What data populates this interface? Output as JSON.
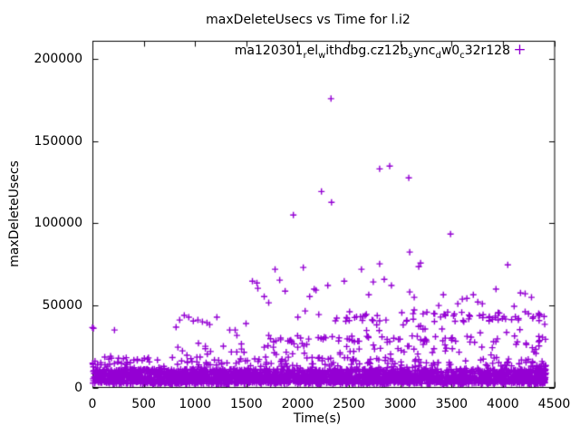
{
  "ui": {
    "background_color": "#ffffff",
    "text_color": "#000000",
    "axes_color": "#000000"
  },
  "chart_data": {
    "type": "scatter",
    "title": "maxDeleteUsecs vs Time for l.i2",
    "xlabel": "Time(s)",
    "ylabel": "maxDeleteUsecs",
    "xlim": [
      0,
      4500
    ],
    "ylim": [
      0,
      211000
    ],
    "xticks": [
      0,
      500,
      1000,
      1500,
      2000,
      2500,
      3000,
      3500,
      4000,
      4500
    ],
    "yticks": [
      0,
      50000,
      100000,
      150000,
      200000
    ],
    "grid": false,
    "legend_position": "top-right-inside",
    "marker": "plus",
    "marker_color": "#9400D3",
    "series": [
      {
        "name": "ma120301_rel_withdbg.cz12b_sync_dw0_c32r128",
        "label_segments": [
          {
            "text": "ma120301"
          },
          {
            "text": "r",
            "sub": true
          },
          {
            "text": "el"
          },
          {
            "text": "w",
            "sub": true
          },
          {
            "text": "ithdbg.cz12b"
          },
          {
            "text": "s",
            "sub": true
          },
          {
            "text": "ync"
          },
          {
            "text": "d",
            "sub": true
          },
          {
            "text": "w0"
          },
          {
            "text": "c",
            "sub": true
          },
          {
            "text": "32r128"
          }
        ],
        "outlier_points": [
          [
            2325,
            176000
          ],
          [
            2232,
            119400
          ],
          [
            2330,
            112800
          ],
          [
            1958,
            105100
          ],
          [
            2799,
            133200
          ],
          [
            2897,
            134900
          ],
          [
            3083,
            127700
          ],
          [
            3490,
            93500
          ],
          [
            1780,
            72000
          ],
          [
            2055,
            73100
          ],
          [
            1559,
            64800
          ],
          [
            1603,
            63700
          ],
          [
            1612,
            60400
          ],
          [
            1825,
            65400
          ],
          [
            1878,
            58700
          ],
          [
            1674,
            55400
          ],
          [
            1718,
            51600
          ],
          [
            2161,
            59900
          ],
          [
            2179,
            59300
          ],
          [
            2117,
            55400
          ],
          [
            2294,
            62100
          ],
          [
            2073,
            46600
          ],
          [
            2206,
            44400
          ],
          [
            2002,
            42800
          ],
          [
            1213,
            42800
          ],
          [
            1143,
            38300
          ],
          [
            1338,
            35000
          ],
          [
            1391,
            35000
          ],
          [
            1497,
            38900
          ],
          [
            1408,
            31700
          ],
          [
            1453,
            23400
          ],
          [
            1276,
            25100
          ],
          [
            1718,
            31700
          ],
          [
            1789,
            28400
          ],
          [
            1834,
            30100
          ],
          [
            1674,
            24500
          ],
          [
            1763,
            24500
          ],
          [
            1922,
            28400
          ],
          [
            1940,
            27900
          ],
          [
            2029,
            30100
          ],
          [
            3092,
            82500
          ],
          [
            2799,
            75300
          ],
          [
            2622,
            72000
          ],
          [
            3198,
            75800
          ],
          [
            3180,
            73600
          ],
          [
            2454,
            64800
          ],
          [
            2737,
            64300
          ],
          [
            2844,
            65900
          ],
          [
            2914,
            62100
          ],
          [
            2693,
            56500
          ],
          [
            3092,
            58200
          ],
          [
            3136,
            54900
          ],
          [
            3420,
            56500
          ],
          [
            3375,
            49900
          ],
          [
            3136,
            47200
          ],
          [
            3242,
            35600
          ],
          [
            4048,
            74700
          ],
          [
            3933,
            59900
          ],
          [
            4172,
            57600
          ],
          [
            4217,
            57100
          ],
          [
            4279,
            54900
          ],
          [
            3712,
            56500
          ],
          [
            3605,
            53800
          ],
          [
            3649,
            54300
          ],
          [
            3756,
            52100
          ],
          [
            3800,
            51000
          ],
          [
            3561,
            51000
          ],
          [
            4110,
            49400
          ],
          [
            4323,
            20700
          ],
          [
            3915,
            17900
          ],
          [
            3960,
            15200
          ],
          [
            4181,
            16800
          ],
          [
            4226,
            15200
          ],
          [
            0,
            36500
          ],
          [
            10,
            36000
          ],
          [
            215,
            35000
          ],
          [
            168,
            14100
          ],
          [
            2,
            14800
          ],
          [
            9,
            12600
          ],
          [
            50,
            14000
          ],
          [
            85,
            13800
          ],
          [
            177,
            19000
          ],
          [
            815,
            36700
          ],
          [
            850,
            41100
          ],
          [
            895,
            43900
          ],
          [
            939,
            42800
          ],
          [
            983,
            40500
          ],
          [
            1028,
            41100
          ],
          [
            1072,
            40000
          ],
          [
            1116,
            39400
          ],
          [
            833,
            24500
          ],
          [
            877,
            22300
          ],
          [
            921,
            19600
          ],
          [
            960,
            17500
          ]
        ],
        "dense_bands": [
          {
            "n": 2100,
            "t": [
              0,
              4420
            ],
            "v": [
              2000,
              11200
            ]
          },
          {
            "n": 700,
            "t": [
              0,
              4420
            ],
            "v": [
              2200,
              7000
            ]
          },
          {
            "n": 190,
            "t": [
              0,
              4420
            ],
            "v": [
              11200,
              18500
            ]
          },
          {
            "n": 55,
            "t": [
              900,
              4420
            ],
            "v": [
              19500,
              27000
            ]
          },
          {
            "n": 62,
            "t": [
              1700,
              4420
            ],
            "v": [
              27500,
              31500
            ]
          },
          {
            "n": 72,
            "t": [
              2330,
              4420
            ],
            "v": [
              40000,
              46200
            ]
          },
          {
            "n": 12,
            "t": [
              2300,
              4420
            ],
            "v": [
              32500,
              38500
            ]
          },
          {
            "n": 40,
            "t": [
              4330,
              4420
            ],
            "v": [
              2000,
              13500
            ]
          }
        ]
      }
    ]
  }
}
